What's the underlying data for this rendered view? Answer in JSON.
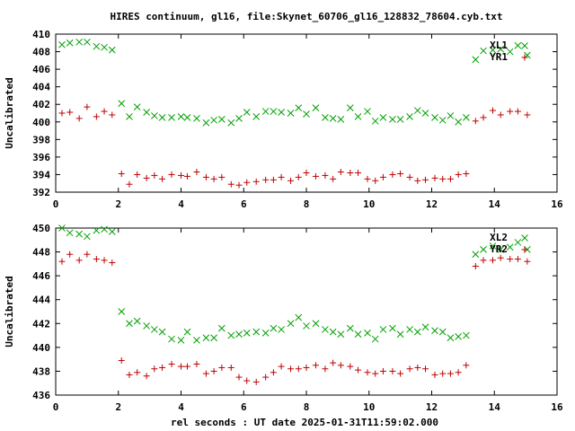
{
  "title": "HIRES continuum, gl16, file:Skynet_60706_gl16_128832_78604.cyb.txt",
  "xlabel": "rel seconds : UT date 2025-01-31T11:59:02.000",
  "colors": {
    "green": "#00a000",
    "red": "#c00000"
  },
  "chart_data": [
    {
      "type": "scatter",
      "ylabel": "Uncalibrated",
      "xlim": [
        0,
        16
      ],
      "ylim": [
        392,
        410
      ],
      "xticks": [
        0,
        2,
        4,
        6,
        8,
        10,
        12,
        14,
        16
      ],
      "yticks": [
        392,
        394,
        396,
        398,
        400,
        402,
        404,
        406,
        408,
        410
      ],
      "legend_position": "top-right",
      "series": [
        {
          "name": "XL1",
          "marker": "x",
          "color": "green",
          "x": [
            0.2,
            0.45,
            0.75,
            1.0,
            1.3,
            1.55,
            1.8,
            2.1,
            2.35,
            2.6,
            2.9,
            3.15,
            3.4,
            3.7,
            4.0,
            4.2,
            4.5,
            4.8,
            5.05,
            5.3,
            5.6,
            5.85,
            6.1,
            6.4,
            6.7,
            6.95,
            7.2,
            7.5,
            7.75,
            8.0,
            8.3,
            8.6,
            8.85,
            9.1,
            9.4,
            9.65,
            9.95,
            10.2,
            10.45,
            10.75,
            11.0,
            11.3,
            11.55,
            11.8,
            12.1,
            12.35,
            12.6,
            12.85,
            13.1,
            13.4,
            13.65,
            13.95,
            14.2,
            14.5,
            14.75,
            15.05
          ],
          "y": [
            408.8,
            409.0,
            409.1,
            409.1,
            408.6,
            408.5,
            408.2,
            402.1,
            400.6,
            401.7,
            401.1,
            400.7,
            400.5,
            400.5,
            400.6,
            400.5,
            400.4,
            399.9,
            400.2,
            400.3,
            399.9,
            400.4,
            401.1,
            400.6,
            401.2,
            401.2,
            401.1,
            401.0,
            401.6,
            400.9,
            401.6,
            400.5,
            400.4,
            400.3,
            401.6,
            400.6,
            401.2,
            400.1,
            400.5,
            400.3,
            400.3,
            400.6,
            401.3,
            401.0,
            400.5,
            400.2,
            400.7,
            400.0,
            400.5,
            407.1,
            408.1,
            408.2,
            408.3,
            408.0,
            408.7,
            407.6
          ]
        },
        {
          "name": "YR1",
          "marker": "+",
          "color": "red",
          "x": [
            0.2,
            0.45,
            0.75,
            1.0,
            1.3,
            1.55,
            1.8,
            2.1,
            2.35,
            2.6,
            2.9,
            3.15,
            3.4,
            3.7,
            4.0,
            4.2,
            4.5,
            4.8,
            5.05,
            5.3,
            5.6,
            5.85,
            6.1,
            6.4,
            6.7,
            6.95,
            7.2,
            7.5,
            7.75,
            8.0,
            8.3,
            8.6,
            8.85,
            9.1,
            9.4,
            9.65,
            9.95,
            10.2,
            10.45,
            10.75,
            11.0,
            11.3,
            11.55,
            11.8,
            12.1,
            12.35,
            12.6,
            12.85,
            13.1,
            13.4,
            13.65,
            13.95,
            14.2,
            14.5,
            14.75,
            15.05
          ],
          "y": [
            401.0,
            401.1,
            400.4,
            401.7,
            400.6,
            401.2,
            400.8,
            394.1,
            392.9,
            394.0,
            393.6,
            393.9,
            393.5,
            394.0,
            393.9,
            393.8,
            394.3,
            393.7,
            393.5,
            393.7,
            392.9,
            392.8,
            393.1,
            393.2,
            393.4,
            393.4,
            393.7,
            393.3,
            393.7,
            394.2,
            393.8,
            393.9,
            393.5,
            394.3,
            394.2,
            394.2,
            393.5,
            393.3,
            393.7,
            394.0,
            394.1,
            393.7,
            393.3,
            393.4,
            393.6,
            393.5,
            393.5,
            394.0,
            394.1,
            400.1,
            400.5,
            401.3,
            400.8,
            401.2,
            401.2,
            400.8
          ]
        }
      ]
    },
    {
      "type": "scatter",
      "ylabel": "Uncalibrated",
      "xlim": [
        0,
        16
      ],
      "ylim": [
        436,
        450
      ],
      "xticks": [
        0,
        2,
        4,
        6,
        8,
        10,
        12,
        14,
        16
      ],
      "yticks": [
        436,
        438,
        440,
        442,
        444,
        446,
        448,
        450
      ],
      "legend_position": "top-right",
      "series": [
        {
          "name": "XL2",
          "marker": "x",
          "color": "green",
          "x": [
            0.2,
            0.45,
            0.75,
            1.0,
            1.3,
            1.55,
            1.8,
            2.1,
            2.35,
            2.6,
            2.9,
            3.15,
            3.4,
            3.7,
            4.0,
            4.2,
            4.5,
            4.8,
            5.05,
            5.3,
            5.6,
            5.85,
            6.1,
            6.4,
            6.7,
            6.95,
            7.2,
            7.5,
            7.75,
            8.0,
            8.3,
            8.6,
            8.85,
            9.1,
            9.4,
            9.65,
            9.95,
            10.2,
            10.45,
            10.75,
            11.0,
            11.3,
            11.55,
            11.8,
            12.1,
            12.35,
            12.6,
            12.85,
            13.1,
            13.4,
            13.65,
            13.95,
            14.2,
            14.5,
            14.75,
            15.05
          ],
          "y": [
            450.0,
            449.6,
            449.5,
            449.3,
            449.8,
            449.9,
            449.7,
            443.0,
            442.0,
            442.2,
            441.8,
            441.5,
            441.3,
            440.7,
            440.6,
            441.3,
            440.6,
            440.8,
            440.8,
            441.6,
            441.0,
            441.1,
            441.2,
            441.3,
            441.2,
            441.6,
            441.5,
            442.0,
            442.5,
            441.8,
            442.0,
            441.5,
            441.3,
            441.1,
            441.6,
            441.1,
            441.2,
            440.7,
            441.5,
            441.6,
            441.1,
            441.5,
            441.3,
            441.7,
            441.4,
            441.3,
            440.8,
            440.9,
            441.0,
            447.8,
            448.2,
            448.5,
            448.2,
            448.4,
            448.8,
            448.2
          ]
        },
        {
          "name": "YR2",
          "marker": "+",
          "color": "red",
          "x": [
            0.2,
            0.45,
            0.75,
            1.0,
            1.3,
            1.55,
            1.8,
            2.1,
            2.35,
            2.6,
            2.9,
            3.15,
            3.4,
            3.7,
            4.0,
            4.2,
            4.5,
            4.8,
            5.05,
            5.3,
            5.6,
            5.85,
            6.1,
            6.4,
            6.7,
            6.95,
            7.2,
            7.5,
            7.75,
            8.0,
            8.3,
            8.6,
            8.85,
            9.1,
            9.4,
            9.65,
            9.95,
            10.2,
            10.45,
            10.75,
            11.0,
            11.3,
            11.55,
            11.8,
            12.1,
            12.35,
            12.6,
            12.85,
            13.1,
            13.4,
            13.65,
            13.95,
            14.2,
            14.5,
            14.75,
            15.05
          ],
          "y": [
            447.2,
            447.8,
            447.3,
            447.8,
            447.4,
            447.3,
            447.1,
            438.9,
            437.7,
            437.9,
            437.6,
            438.2,
            438.3,
            438.6,
            438.4,
            438.4,
            438.6,
            437.8,
            438.0,
            438.3,
            438.3,
            437.5,
            437.2,
            437.1,
            437.5,
            437.9,
            438.4,
            438.2,
            438.2,
            438.3,
            438.5,
            438.2,
            438.7,
            438.5,
            438.4,
            438.1,
            437.9,
            437.8,
            438.0,
            438.0,
            437.8,
            438.2,
            438.3,
            438.2,
            437.7,
            437.8,
            437.8,
            437.9,
            438.5,
            446.8,
            447.3,
            447.3,
            447.5,
            447.4,
            447.4,
            447.2
          ]
        }
      ]
    }
  ]
}
